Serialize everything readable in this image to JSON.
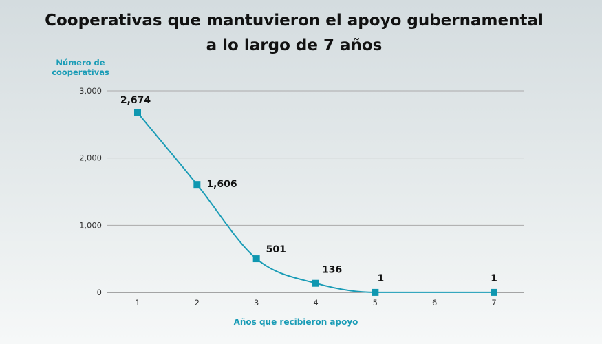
{
  "chart_data": {
    "type": "line",
    "title_line1": "Cooperativas que mantuvieron el apoyo gubernamental",
    "title_line2": "a lo largo de 7 años",
    "ylabel_line1": "Número de",
    "ylabel_line2": "cooperativas",
    "xlabel": "Años que recibieron apoyo",
    "x": [
      1,
      2,
      3,
      4,
      5,
      6,
      7
    ],
    "x_tick_labels": [
      "1",
      "2",
      "3",
      "4",
      "5",
      "6",
      "7"
    ],
    "series": [
      {
        "name": "Cooperativas",
        "values": [
          2674,
          1606,
          501,
          136,
          1,
          null,
          1
        ],
        "labels": [
          "2,674",
          "1,606",
          "501",
          "136",
          "1",
          "",
          "1"
        ],
        "color": "#1a9cb6"
      }
    ],
    "y_ticks": [
      0,
      1000,
      2000,
      3000
    ],
    "y_tick_labels": [
      "0",
      "1,000",
      "2,000",
      "3,000"
    ],
    "ylim": [
      0,
      3000
    ],
    "grid": true,
    "legend": "none"
  }
}
